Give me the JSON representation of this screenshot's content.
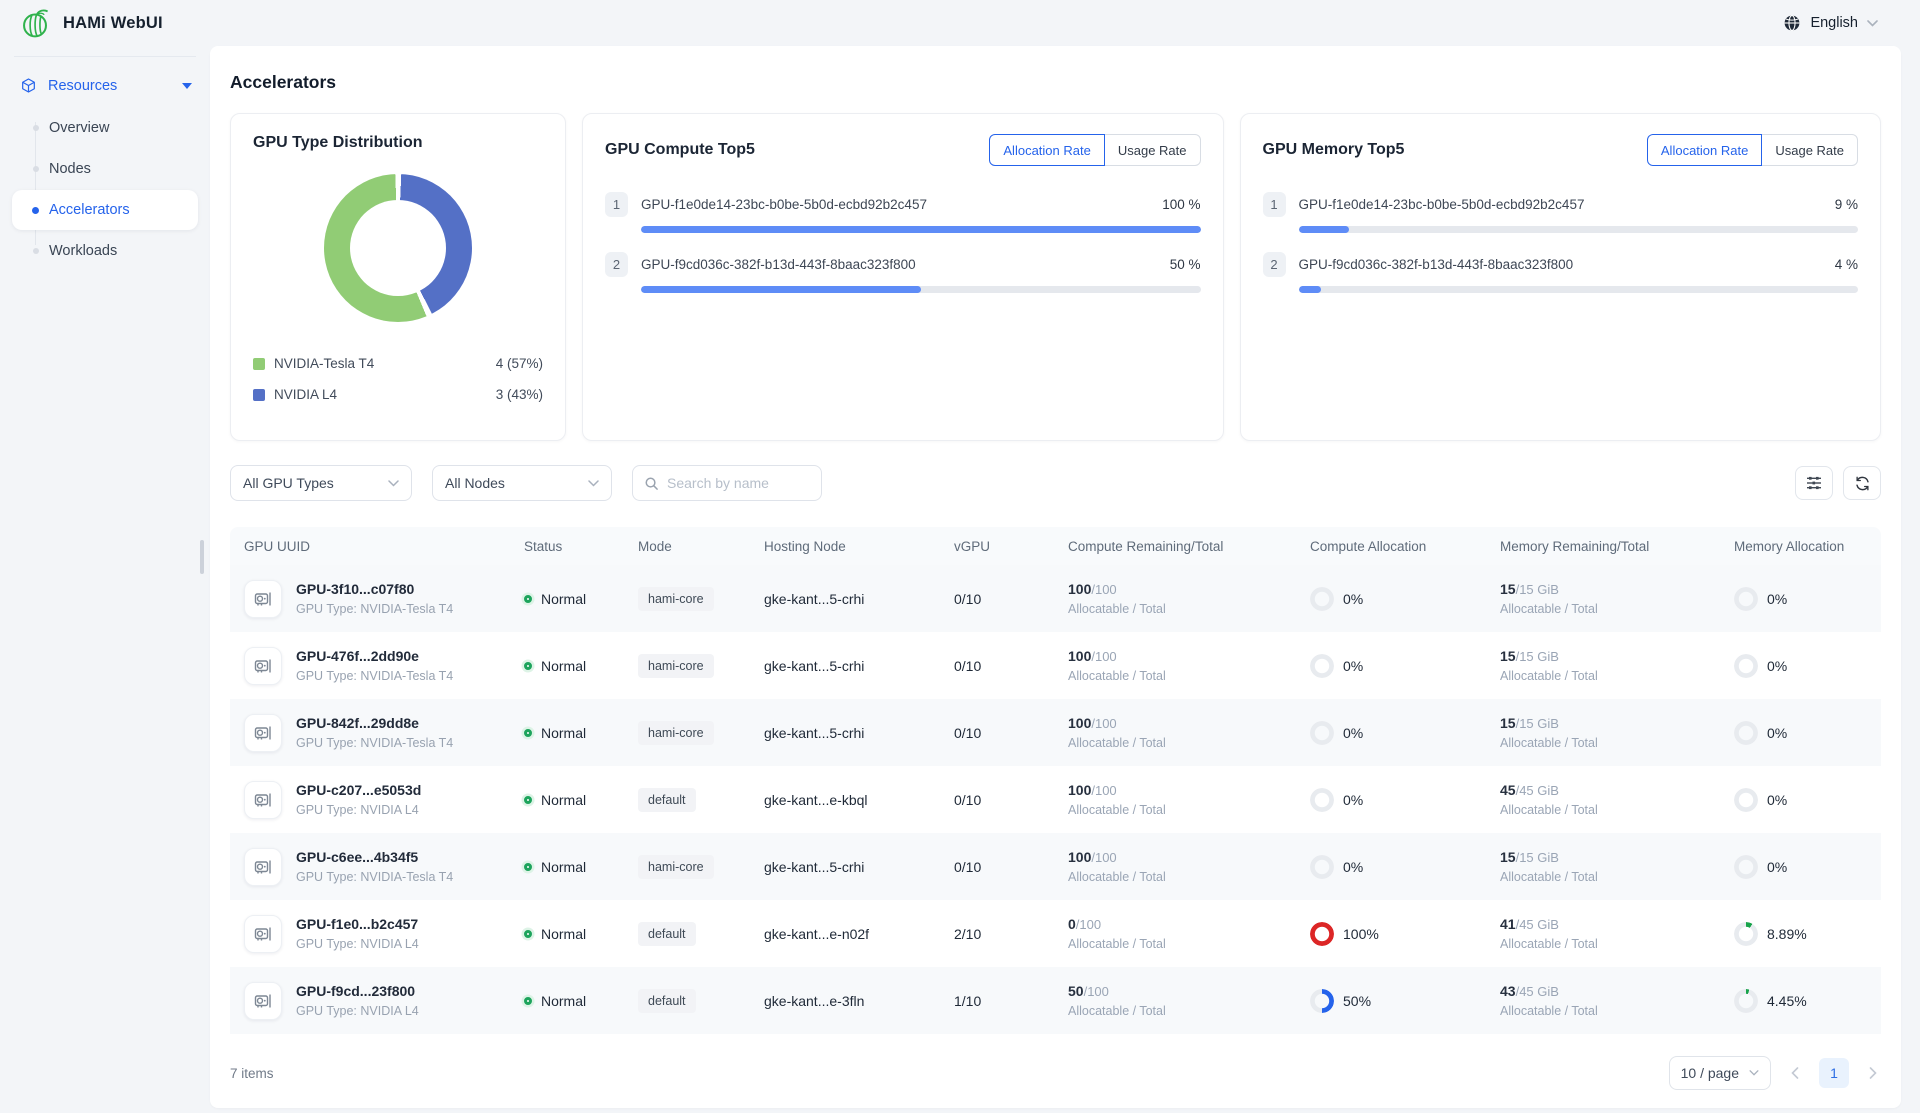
{
  "app": {
    "title": "HAMi WebUI",
    "language": "English"
  },
  "sidebar": {
    "section_label": "Resources",
    "items": [
      {
        "label": "Overview"
      },
      {
        "label": "Nodes"
      },
      {
        "label": "Accelerators",
        "active": true
      },
      {
        "label": "Workloads"
      }
    ]
  },
  "page": {
    "title": "Accelerators"
  },
  "tab_labels": {
    "allocation": "Allocation Rate",
    "usage": "Usage Rate"
  },
  "chart_data": [
    {
      "id": "gpu_type_distribution",
      "type": "pie",
      "donut": true,
      "title": "GPU Type Distribution",
      "start_angle_deg": 155,
      "legend_position": "bottom-left",
      "slices": [
        {
          "label": "NVIDIA-Tesla T4",
          "count": 4,
          "percent": 57,
          "count_label": "4 (57%)",
          "color": "#91cc75"
        },
        {
          "label": "NVIDIA L4",
          "count": 3,
          "percent": 43,
          "count_label": "3 (43%)",
          "color": "#5470c6"
        }
      ]
    },
    {
      "id": "gpu_compute_top5",
      "type": "bar",
      "title": "GPU Compute Top5",
      "unit": "%",
      "xlim": [
        0,
        100
      ],
      "items": [
        {
          "rank": "1",
          "name": "GPU-f1e0de14-23bc-b0be-5b0d-ecbd92b2c457",
          "value": 100,
          "value_label": "100 %"
        },
        {
          "rank": "2",
          "name": "GPU-f9cd036c-382f-b13d-443f-8baac323f800",
          "value": 50,
          "value_label": "50 %"
        }
      ]
    },
    {
      "id": "gpu_memory_top5",
      "type": "bar",
      "title": "GPU Memory Top5",
      "unit": "%",
      "xlim": [
        0,
        100
      ],
      "items": [
        {
          "rank": "1",
          "name": "GPU-f1e0de14-23bc-b0be-5b0d-ecbd92b2c457",
          "value": 9,
          "value_label": "9 %"
        },
        {
          "rank": "2",
          "name": "GPU-f9cd036c-382f-b13d-443f-8baac323f800",
          "value": 4,
          "value_label": "4 %"
        }
      ]
    }
  ],
  "filters": {
    "gpu_type": "All GPU Types",
    "node": "All Nodes",
    "search_placeholder": "Search by name"
  },
  "table": {
    "columns": [
      {
        "label": "GPU UUID"
      },
      {
        "label": "Status"
      },
      {
        "label": "Mode"
      },
      {
        "label": "Hosting Node"
      },
      {
        "label": "vGPU"
      },
      {
        "label": "Compute Remaining/Total"
      },
      {
        "label": "Compute Allocation"
      },
      {
        "label": "Memory Remaining/Total"
      },
      {
        "label": "Memory Allocation"
      }
    ],
    "sub_label": "Allocatable / Total",
    "rows": [
      {
        "uuid": "GPU-3f10...c07f80",
        "gpu_type": "GPU Type: NVIDIA-Tesla T4",
        "status": "Normal",
        "mode": "hami-core",
        "node": "gke-kant...5-crhi",
        "vgpu": "0/10",
        "compute_remaining": "100",
        "compute_total": "/100",
        "compute_ring": {
          "pct": 0,
          "color": "#d3d8df",
          "label": "0%"
        },
        "memory_remaining": "15",
        "memory_total": "/15 GiB",
        "memory_ring": {
          "pct": 0,
          "color": "#d3d8df",
          "label": "0%"
        }
      },
      {
        "uuid": "GPU-476f...2dd90e",
        "gpu_type": "GPU Type: NVIDIA-Tesla T4",
        "status": "Normal",
        "mode": "hami-core",
        "node": "gke-kant...5-crhi",
        "vgpu": "0/10",
        "compute_remaining": "100",
        "compute_total": "/100",
        "compute_ring": {
          "pct": 0,
          "color": "#d3d8df",
          "label": "0%"
        },
        "memory_remaining": "15",
        "memory_total": "/15 GiB",
        "memory_ring": {
          "pct": 0,
          "color": "#d3d8df",
          "label": "0%"
        }
      },
      {
        "uuid": "GPU-842f...29dd8e",
        "gpu_type": "GPU Type: NVIDIA-Tesla T4",
        "status": "Normal",
        "mode": "hami-core",
        "node": "gke-kant...5-crhi",
        "vgpu": "0/10",
        "compute_remaining": "100",
        "compute_total": "/100",
        "compute_ring": {
          "pct": 0,
          "color": "#d3d8df",
          "label": "0%"
        },
        "memory_remaining": "15",
        "memory_total": "/15 GiB",
        "memory_ring": {
          "pct": 0,
          "color": "#d3d8df",
          "label": "0%"
        }
      },
      {
        "uuid": "GPU-c207...e5053d",
        "gpu_type": "GPU Type: NVIDIA L4",
        "status": "Normal",
        "mode": "default",
        "node": "gke-kant...e-kbql",
        "vgpu": "0/10",
        "compute_remaining": "100",
        "compute_total": "/100",
        "compute_ring": {
          "pct": 0,
          "color": "#d3d8df",
          "label": "0%"
        },
        "memory_remaining": "45",
        "memory_total": "/45 GiB",
        "memory_ring": {
          "pct": 0,
          "color": "#d3d8df",
          "label": "0%"
        }
      },
      {
        "uuid": "GPU-c6ee...4b34f5",
        "gpu_type": "GPU Type: NVIDIA-Tesla T4",
        "status": "Normal",
        "mode": "hami-core",
        "node": "gke-kant...5-crhi",
        "vgpu": "0/10",
        "compute_remaining": "100",
        "compute_total": "/100",
        "compute_ring": {
          "pct": 0,
          "color": "#d3d8df",
          "label": "0%"
        },
        "memory_remaining": "15",
        "memory_total": "/15 GiB",
        "memory_ring": {
          "pct": 0,
          "color": "#d3d8df",
          "label": "0%"
        }
      },
      {
        "uuid": "GPU-f1e0...b2c457",
        "gpu_type": "GPU Type: NVIDIA L4",
        "status": "Normal",
        "mode": "default",
        "node": "gke-kant...e-n02f",
        "vgpu": "2/10",
        "compute_remaining": "0",
        "compute_total": "/100",
        "compute_ring": {
          "pct": 100,
          "color": "#dc2626",
          "label": "100%"
        },
        "memory_remaining": "41",
        "memory_total": "/45 GiB",
        "memory_ring": {
          "pct": 8.89,
          "color": "#17a34a",
          "label": "8.89%"
        }
      },
      {
        "uuid": "GPU-f9cd...23f800",
        "gpu_type": "GPU Type: NVIDIA L4",
        "status": "Normal",
        "mode": "default",
        "node": "gke-kant...e-3fln",
        "vgpu": "1/10",
        "compute_remaining": "50",
        "compute_total": "/100",
        "compute_ring": {
          "pct": 50,
          "color": "#2563eb",
          "label": "50%"
        },
        "memory_remaining": "43",
        "memory_total": "/45 GiB",
        "memory_ring": {
          "pct": 4.45,
          "color": "#17a34a",
          "label": "4.45%"
        }
      }
    ],
    "footer": {
      "items_label": "7 items",
      "page_size": "10 / page",
      "current_page": "1"
    }
  }
}
